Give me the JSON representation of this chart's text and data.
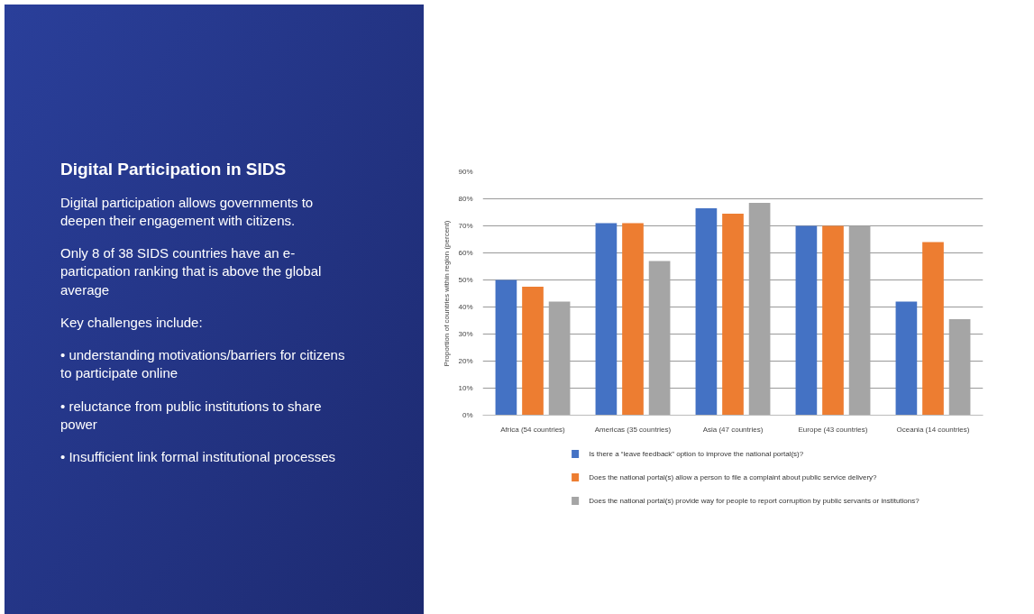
{
  "chart_data": {
    "type": "bar",
    "title": "Digital Participation in SIDS",
    "annotations": [
      "Digital participation allows governments to deepen their engagement with citizens.",
      "Only 8 of 38 SIDS countries have an e-particpation ranking that is above the global average",
      "Key challenges include:",
      "• understanding motivations/barriers for citizens to participate online",
      "• reluctance from public institutions to share power",
      "• Insufficient link formal institutional processes"
    ],
    "ylabel": "Proportion of countries within region (percent)",
    "categories": [
      "Africa (54 countries)",
      "Americas (35 countries)",
      "Asia (47 countries)",
      "Europe (43 countries)",
      "Oceania (14 countries)"
    ],
    "series": [
      {
        "name": "Is there a “leave feedback” option to improve the national portal(s)?",
        "color": "#4472c4",
        "values": [
          50,
          71,
          76.5,
          70,
          42
        ]
      },
      {
        "name": "Does the national portal(s) allow a person to file a complaint about public service delivery?",
        "color": "#ed7d31",
        "values": [
          47.5,
          71,
          74.5,
          70,
          64
        ]
      },
      {
        "name": "Does the national portal(s) provide way for people to report corruption by public servants or institutions?",
        "color": "#a5a5a5",
        "values": [
          42,
          57,
          78.5,
          70,
          35.5
        ]
      }
    ],
    "ylim": [
      0,
      90
    ],
    "yticks": [
      {
        "value": 0,
        "label": "0%"
      },
      {
        "value": 10,
        "label": "10%"
      },
      {
        "value": 20,
        "label": "20%"
      },
      {
        "value": 30,
        "label": "30%"
      },
      {
        "value": 40,
        "label": "40%"
      },
      {
        "value": 50,
        "label": "50%"
      },
      {
        "value": 60,
        "label": "60%"
      },
      {
        "value": 70,
        "label": "70%"
      },
      {
        "value": 80,
        "label": "80%"
      },
      {
        "value": 90,
        "label": "90%"
      }
    ],
    "grid": "y",
    "legend": "bottom"
  }
}
